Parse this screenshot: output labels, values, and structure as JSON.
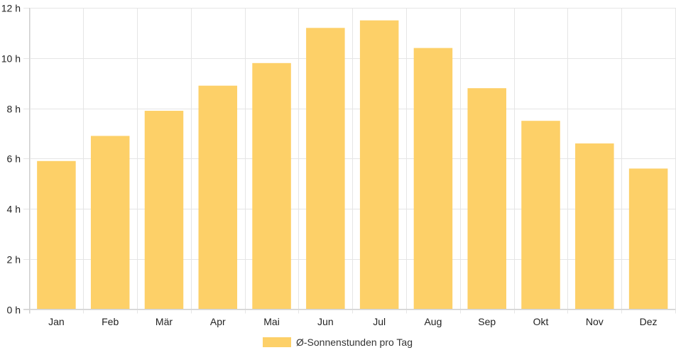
{
  "chart_data": {
    "type": "bar",
    "categories": [
      "Jan",
      "Feb",
      "Mär",
      "Apr",
      "Mai",
      "Jun",
      "Jul",
      "Aug",
      "Sep",
      "Okt",
      "Nov",
      "Dez"
    ],
    "series": [
      {
        "name": "Ø-Sonnenstunden pro Tag",
        "values": [
          5.9,
          6.9,
          7.9,
          8.9,
          9.8,
          11.2,
          11.5,
          10.4,
          8.8,
          7.5,
          6.6,
          5.6
        ],
        "color": "#fdd068"
      }
    ],
    "y_ticks": [
      "0 h",
      "2 h",
      "4 h",
      "6 h",
      "8 h",
      "10 h",
      "12 h"
    ],
    "y_tick_values": [
      0,
      2,
      4,
      6,
      8,
      10,
      12
    ],
    "ylim": [
      0,
      12
    ],
    "grid": true,
    "legend_position": "bottom"
  }
}
